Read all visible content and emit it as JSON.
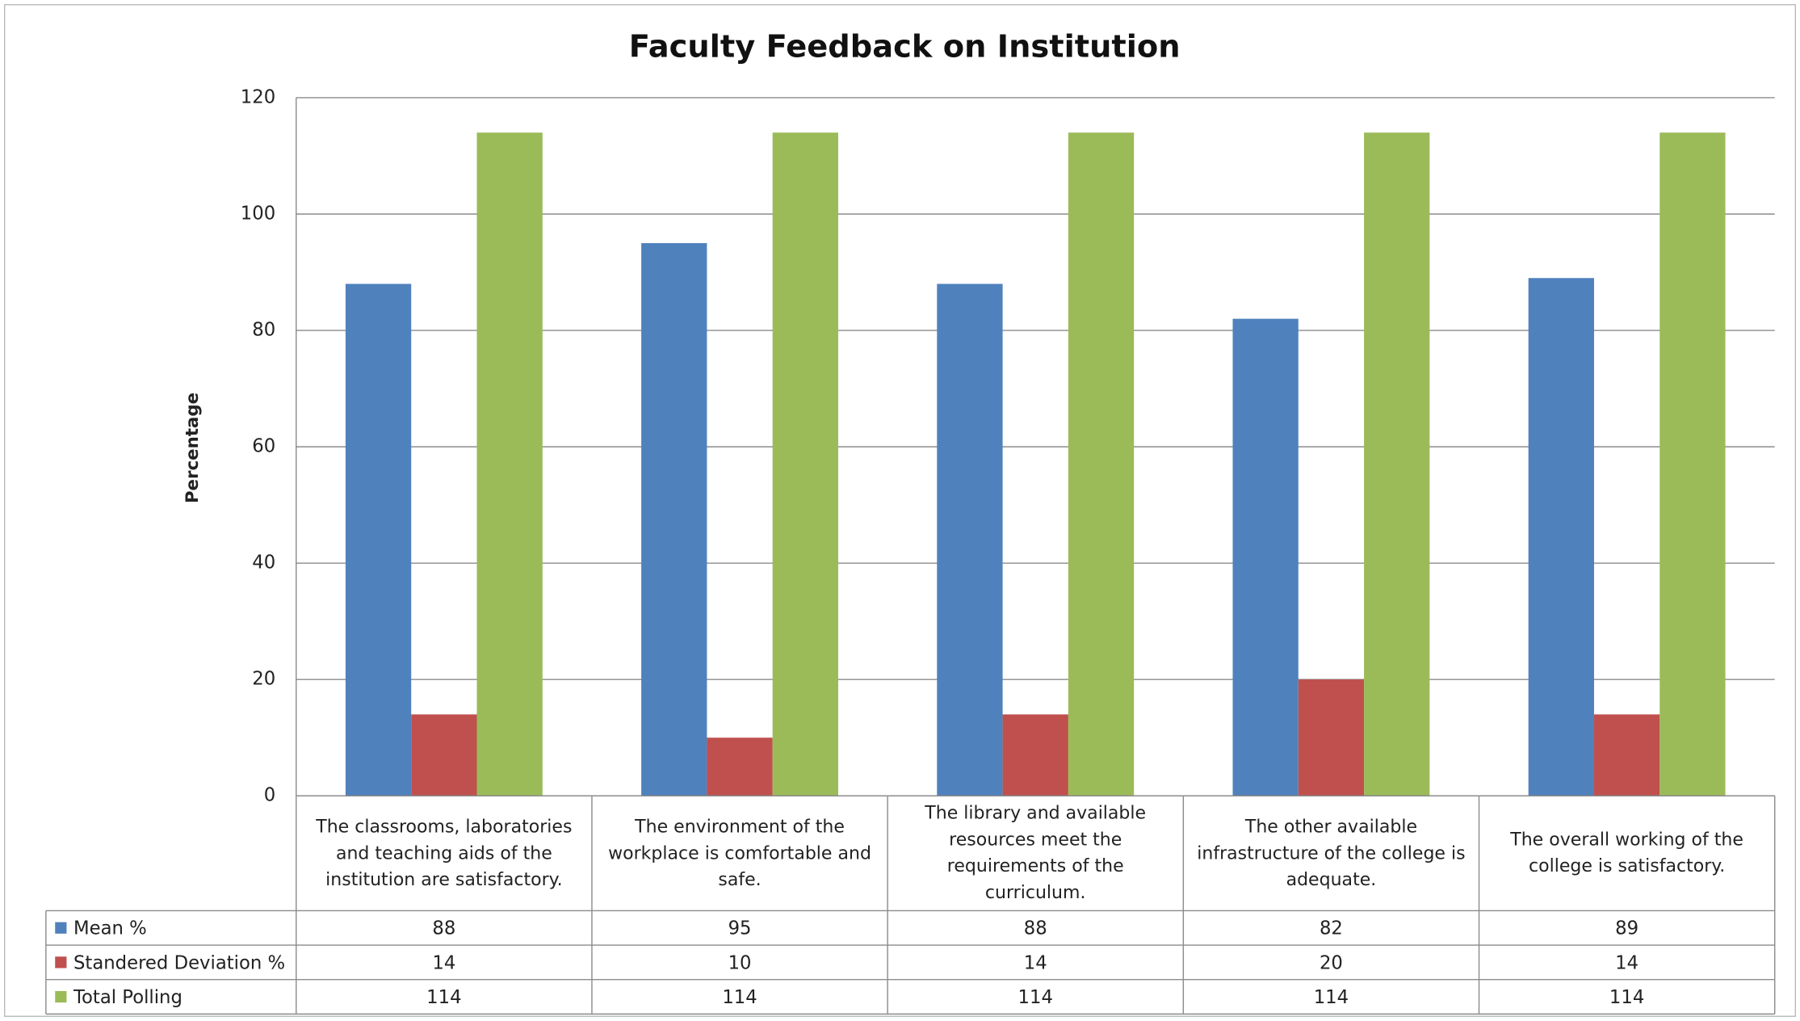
{
  "chart_data": {
    "type": "bar",
    "title": "Faculty Feedback on Institution",
    "y_label": "Percentage",
    "categories": [
      "The classrooms, laboratories and teaching aids of the institution are satisfactory.",
      "The environment of the workplace is comfortable and safe.",
      "The library and available resources meet the requirements of the curriculum.",
      "The other available infrastructure of the college is adequate.",
      "The overall working of the college is satisfactory."
    ],
    "series": [
      {
        "name": "Mean %",
        "color": "#4f81bd",
        "values": [
          88,
          95,
          88,
          82,
          89
        ]
      },
      {
        "name": "Standered Deviation %",
        "color": "#c0504d",
        "values": [
          14,
          10,
          14,
          20,
          14
        ]
      },
      {
        "name": "Total Polling",
        "color": "#9bbb59",
        "values": [
          114,
          114,
          114,
          114,
          114
        ]
      }
    ],
    "ylim": [
      0,
      120
    ],
    "yticks": [
      0,
      20,
      40,
      60,
      80,
      100,
      120
    ],
    "grid": true,
    "data_table": true
  }
}
